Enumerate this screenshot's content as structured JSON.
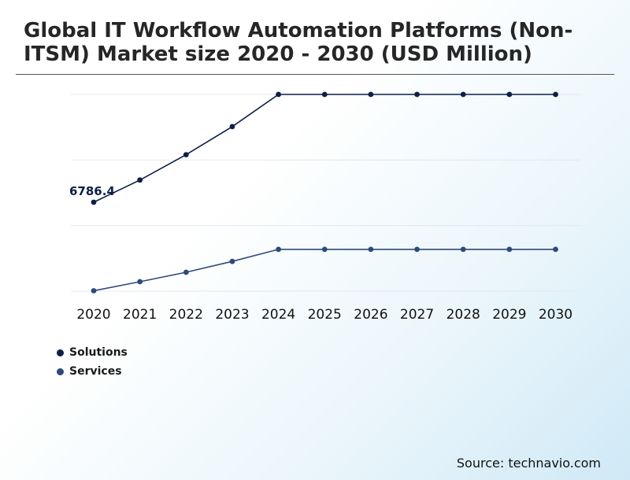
{
  "title": "Global IT Workflow Automation Platforms (Non-ITSM) Market size 2020 - 2030 (USD Million)",
  "source": "Source: technavio.com",
  "colors": {
    "solutions": "#0d1f45",
    "services": "#2f4a7a",
    "grid": "#e4e8ee"
  },
  "chart_data": {
    "type": "line",
    "categories": [
      "2020",
      "2021",
      "2022",
      "2023",
      "2024",
      "2025",
      "2026",
      "2027",
      "2028",
      "2029",
      "2030"
    ],
    "series": [
      {
        "name": "Solutions",
        "values": [
          6786.4,
          7890,
          9150,
          10550,
          12150,
          12150,
          12150,
          12150,
          12150,
          12150,
          12150
        ]
      },
      {
        "name": "Services",
        "values": [
          2380,
          2830,
          3300,
          3840,
          4440,
          4440,
          4440,
          4440,
          4440,
          4440,
          4440
        ]
      }
    ],
    "data_labels": [
      {
        "series": 0,
        "index": 0,
        "text": "6786.4"
      }
    ],
    "ylim": [
      2360,
      12150
    ],
    "grid": true,
    "y_axis_visible": false,
    "legend": "bottom-left"
  }
}
